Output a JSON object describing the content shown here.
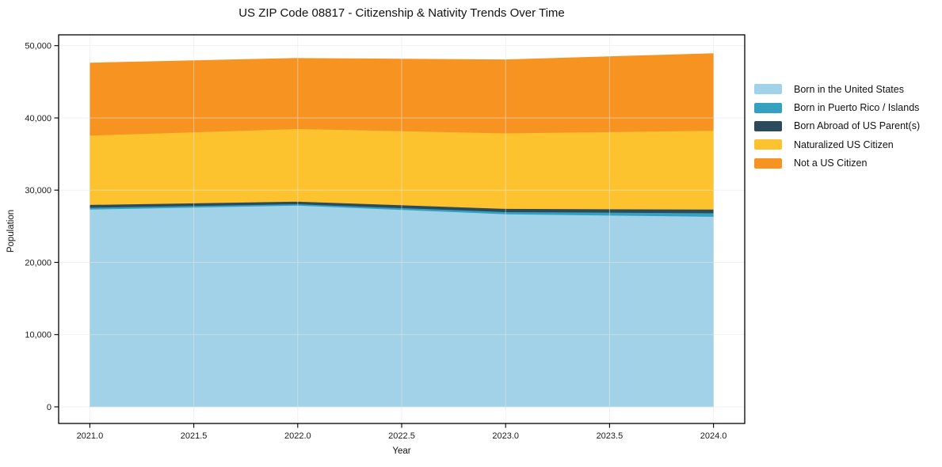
{
  "figure": {
    "title": "US ZIP Code 08817 - Citizenship & Nativity Trends Over Time",
    "xlabel": "Year",
    "ylabel": "Population",
    "background_color": "#ffffff",
    "frame_color": "#000000",
    "grid_color": "#e6e6e6",
    "tick_label_color": "#1a1a1a"
  },
  "chart_data": {
    "type": "area",
    "stacked": true,
    "title": "US ZIP Code 08817 - Citizenship & Nativity Trends Over Time",
    "xlabel": "Year",
    "ylabel": "Population",
    "x": [
      2021,
      2022,
      2023,
      2024
    ],
    "series": [
      {
        "name": "Born in the United States",
        "color": "#a1d2e8",
        "values": [
          27350,
          27900,
          26700,
          26350
        ]
      },
      {
        "name": "Born in Puerto Rico / Islands",
        "color": "#35a1c1",
        "values": [
          250,
          200,
          300,
          500
        ]
      },
      {
        "name": "Born Abroad of US Parent(s)",
        "color": "#2b4a5c",
        "values": [
          400,
          350,
          450,
          500
        ]
      },
      {
        "name": "Naturalized US Citizen",
        "color": "#fdc32f",
        "values": [
          9600,
          10050,
          10450,
          10900
        ]
      },
      {
        "name": "Not a US Citizen",
        "color": "#f79421",
        "values": [
          10000,
          9750,
          10150,
          10650
        ]
      }
    ],
    "stacked_totals": [
      47600,
      48250,
      48050,
      48900
    ],
    "xlim": [
      2020.85,
      2024.15
    ],
    "ylim": [
      -2300,
      51500
    ],
    "xticks": [
      2021.0,
      2021.5,
      2022.0,
      2022.5,
      2023.0,
      2023.5,
      2024.0
    ],
    "xtick_labels": [
      "2021.0",
      "2021.5",
      "2022.0",
      "2022.5",
      "2023.0",
      "2023.5",
      "2024.0"
    ],
    "yticks": [
      0,
      10000,
      20000,
      30000,
      40000,
      50000
    ],
    "ytick_labels": [
      "0",
      "10,000",
      "20,000",
      "30,000",
      "40,000",
      "50,000"
    ],
    "grid": true,
    "legend_position": "right-outside"
  }
}
